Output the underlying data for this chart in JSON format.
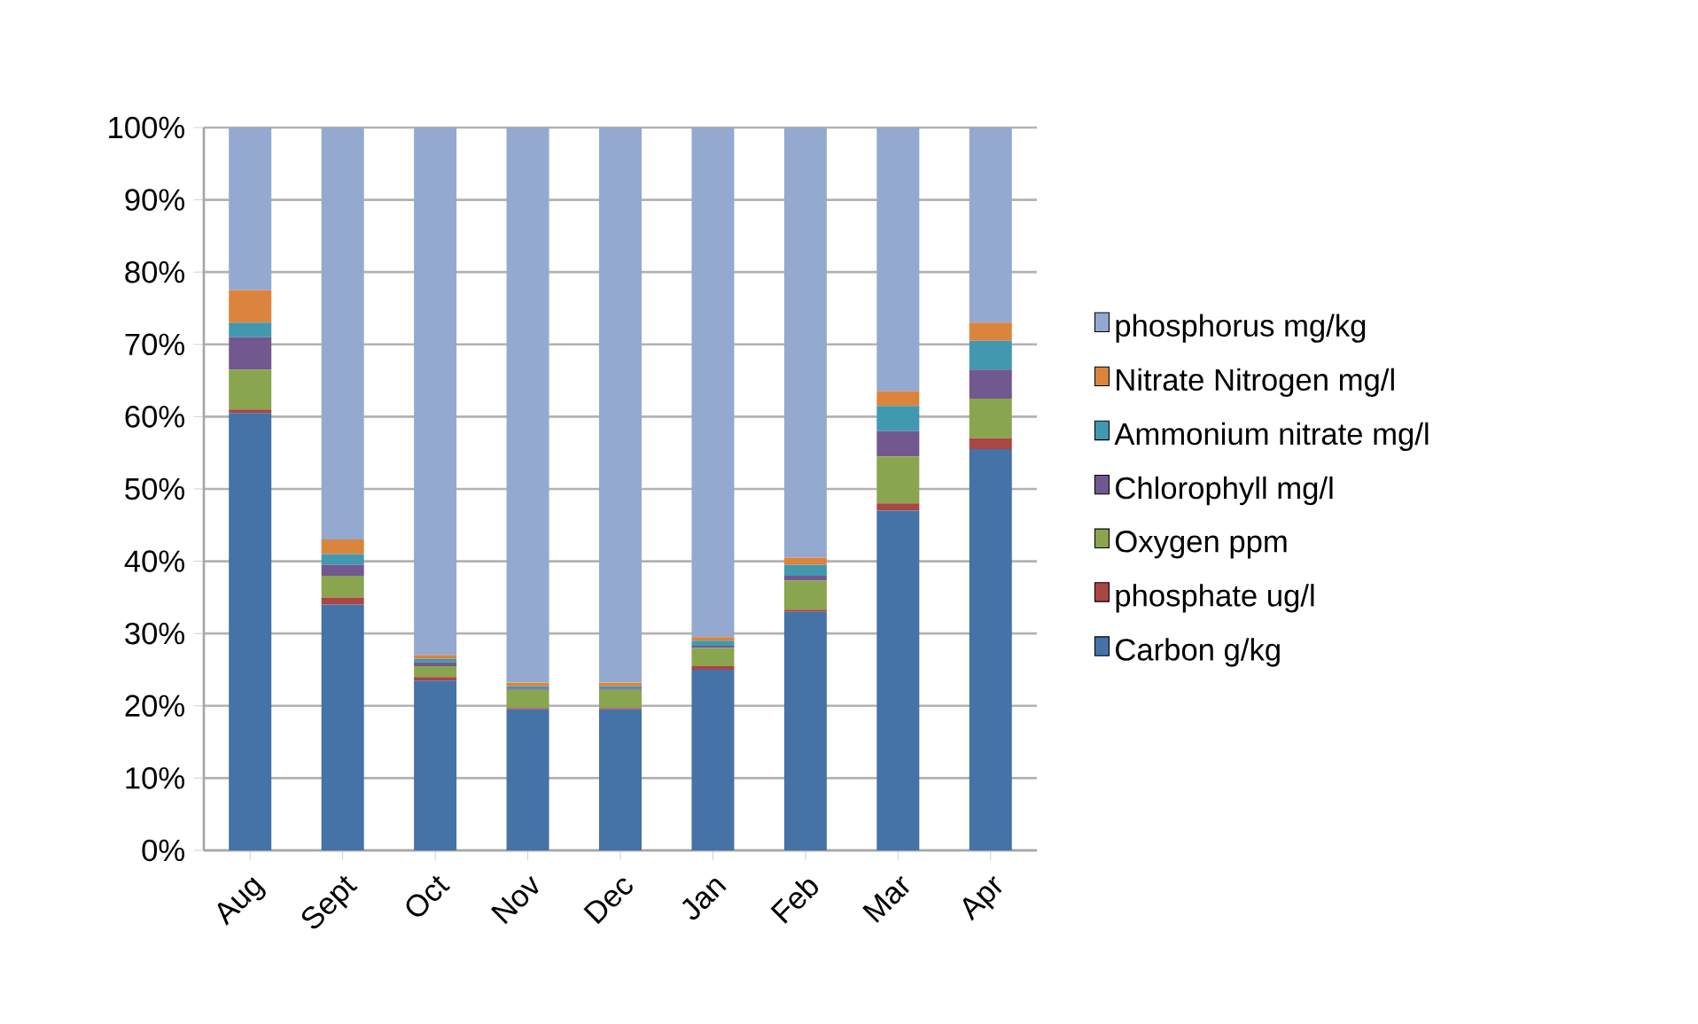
{
  "chart_data": {
    "type": "bar",
    "stacked": true,
    "categories": [
      "Aug",
      "Sept",
      "Oct",
      "Nov",
      "Dec",
      "Jan",
      "Feb",
      "Mar",
      "Apr"
    ],
    "series": [
      {
        "name": "Carbon g/kg",
        "color": "#4572a7",
        "values": [
          60.5,
          34,
          23.5,
          19.5,
          19.5,
          25,
          33,
          47,
          55.5
        ]
      },
      {
        "name": "phosphate ug/l",
        "color": "#aa4643",
        "values": [
          0.5,
          1,
          0.5,
          0.2,
          0.2,
          0.5,
          0.3,
          1,
          1.5
        ]
      },
      {
        "name": "Oxygen ppm",
        "color": "#89a54e",
        "values": [
          5.5,
          3,
          1.5,
          2.5,
          2.5,
          2.5,
          4,
          6.5,
          5.5
        ]
      },
      {
        "name": "Chlorophyll mg/l",
        "color": "#71588f",
        "values": [
          4.5,
          1.5,
          0.5,
          0.2,
          0.2,
          0.3,
          0.7,
          3.5,
          4
        ]
      },
      {
        "name": "Ammonium nitrate mg/l",
        "color": "#4198af",
        "values": [
          2,
          1.5,
          0.5,
          0.3,
          0.3,
          0.7,
          1.5,
          3.5,
          4
        ]
      },
      {
        "name": "Nitrate Nitrogen mg/l",
        "color": "#db843d",
        "values": [
          4.5,
          2,
          0.5,
          0.5,
          0.5,
          0.5,
          1,
          2,
          2.5
        ]
      },
      {
        "name": "phosphorus mg/kg",
        "color": "#93a9cf",
        "values": [
          22.5,
          57,
          73,
          76.8,
          76.8,
          70.5,
          59.5,
          36.5,
          27
        ]
      }
    ],
    "ylim": [
      0,
      100
    ],
    "yticks": [
      {
        "value": 0,
        "label": "0%"
      },
      {
        "value": 10,
        "label": "10%"
      },
      {
        "value": 20,
        "label": "20%"
      },
      {
        "value": 30,
        "label": "30%"
      },
      {
        "value": 40,
        "label": "40%"
      },
      {
        "value": 50,
        "label": "50%"
      },
      {
        "value": 60,
        "label": "60%"
      },
      {
        "value": 70,
        "label": "70%"
      },
      {
        "value": 80,
        "label": "80%"
      },
      {
        "value": 90,
        "label": "90%"
      },
      {
        "value": 100,
        "label": "100%"
      }
    ],
    "grid": "y",
    "legend": "right"
  }
}
